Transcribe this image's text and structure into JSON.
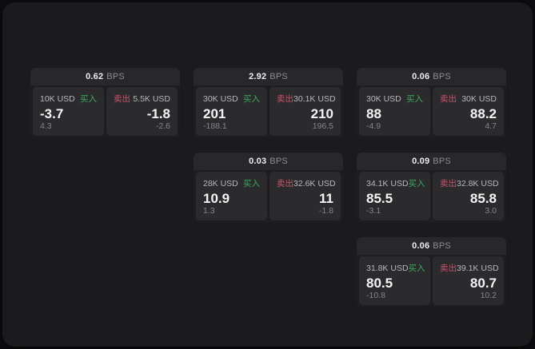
{
  "labels": {
    "bps_unit": "BPS",
    "buy": "买入",
    "sell": "卖出"
  },
  "colors": {
    "buy_green": "#3bab5b",
    "sell_red": "#ce5168",
    "surface_bg": "#1b1b1d",
    "card_header_bg": "#28282a",
    "panel_bg": "#2b2b2e"
  },
  "cards": [
    {
      "grid": {
        "row": 1,
        "col": 1
      },
      "bps": "0.62",
      "buy": {
        "notional": "10K USD",
        "price": "-3.7",
        "change": "4.3"
      },
      "sell": {
        "notional": "5.5K USD",
        "price": "-1.8",
        "change": "-2.6"
      }
    },
    {
      "grid": {
        "row": 1,
        "col": 2
      },
      "bps": "2.92",
      "buy": {
        "notional": "30K USD",
        "price": "201",
        "change": "-188.1"
      },
      "sell": {
        "notional": "30.1K USD",
        "price": "210",
        "change": "196.5"
      }
    },
    {
      "grid": {
        "row": 1,
        "col": 3
      },
      "bps": "0.06",
      "buy": {
        "notional": "30K USD",
        "price": "88",
        "change": "-4.9"
      },
      "sell": {
        "notional": "30K USD",
        "price": "88.2",
        "change": "4.7"
      }
    },
    {
      "grid": {
        "row": 2,
        "col": 2
      },
      "bps": "0.03",
      "buy": {
        "notional": "28K USD",
        "price": "10.9",
        "change": "1.3"
      },
      "sell": {
        "notional": "32.6K USD",
        "price": "11",
        "change": "-1.8"
      }
    },
    {
      "grid": {
        "row": 2,
        "col": 3
      },
      "bps": "0.09",
      "buy": {
        "notional": "34.1K USD",
        "price": "85.5",
        "change": "-3.1"
      },
      "sell": {
        "notional": "32.8K USD",
        "price": "85.8",
        "change": "3.0"
      }
    },
    {
      "grid": {
        "row": 3,
        "col": 3
      },
      "bps": "0.06",
      "buy": {
        "notional": "31.8K USD",
        "price": "80.5",
        "change": "-10.8"
      },
      "sell": {
        "notional": "39.1K USD",
        "price": "80.7",
        "change": "10.2"
      }
    }
  ]
}
